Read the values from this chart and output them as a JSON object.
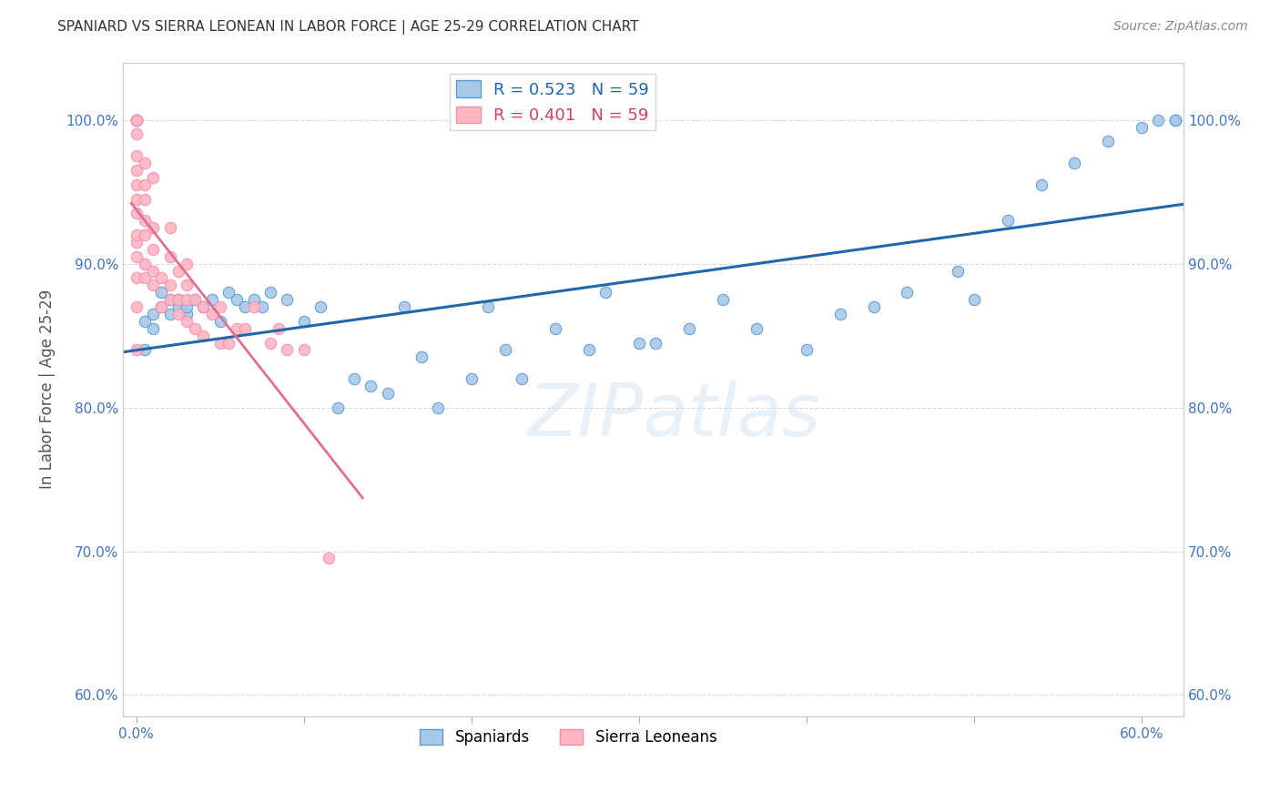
{
  "title": "SPANIARD VS SIERRA LEONEAN IN LABOR FORCE | AGE 25-29 CORRELATION CHART",
  "source": "Source: ZipAtlas.com",
  "xlabel_ticks": [
    0.0,
    0.1,
    0.2,
    0.3,
    0.4,
    0.5,
    0.6
  ],
  "xlabel_labels": [
    "0.0%",
    "",
    "",
    "",
    "",
    "",
    "60.0%"
  ],
  "ylabel_ticks": [
    0.6,
    0.7,
    0.8,
    0.9,
    1.0
  ],
  "ylabel_labels": [
    "60.0%",
    "70.0%",
    "80.0%",
    "90.0%",
    "100.0%"
  ],
  "xlim": [
    -0.008,
    0.625
  ],
  "ylim": [
    0.585,
    1.04
  ],
  "ylabel": "In Labor Force | Age 25-29",
  "legend_blue_label": "R = 0.523   N = 59",
  "legend_pink_label": "R = 0.401   N = 59",
  "blue_color": "#a8c8e8",
  "pink_color": "#ffb6c1",
  "blue_edge_color": "#5b9bd5",
  "pink_edge_color": "#f48fb1",
  "blue_line_color": "#2166ac",
  "pink_line_color": "#e07090",
  "grid_color": "#d0d0d0",
  "title_color": "#333333",
  "tick_color": "#4472c4",
  "watermark": "ZIPatlas",
  "blue_scatter_x": [
    0.005,
    0.005,
    0.01,
    0.01,
    0.015,
    0.015,
    0.02,
    0.02,
    0.025,
    0.025,
    0.03,
    0.03,
    0.035,
    0.04,
    0.045,
    0.05,
    0.055,
    0.06,
    0.065,
    0.07,
    0.075,
    0.08,
    0.09,
    0.1,
    0.11,
    0.12,
    0.13,
    0.14,
    0.15,
    0.16,
    0.17,
    0.18,
    0.2,
    0.21,
    0.22,
    0.23,
    0.25,
    0.27,
    0.28,
    0.3,
    0.31,
    0.33,
    0.35,
    0.37,
    0.4,
    0.42,
    0.44,
    0.46,
    0.49,
    0.5,
    0.52,
    0.54,
    0.56,
    0.58,
    0.6,
    0.61,
    0.62,
    0.62,
    0.63
  ],
  "blue_scatter_y": [
    0.84,
    0.86,
    0.855,
    0.865,
    0.87,
    0.88,
    0.865,
    0.875,
    0.87,
    0.875,
    0.865,
    0.87,
    0.875,
    0.87,
    0.875,
    0.86,
    0.88,
    0.875,
    0.87,
    0.875,
    0.87,
    0.88,
    0.875,
    0.86,
    0.87,
    0.8,
    0.82,
    0.815,
    0.81,
    0.87,
    0.835,
    0.8,
    0.82,
    0.87,
    0.84,
    0.82,
    0.855,
    0.84,
    0.88,
    0.845,
    0.845,
    0.855,
    0.875,
    0.855,
    0.84,
    0.865,
    0.87,
    0.88,
    0.895,
    0.875,
    0.93,
    0.955,
    0.97,
    0.985,
    0.995,
    1.0,
    1.0,
    1.0,
    1.0
  ],
  "pink_scatter_x": [
    0.0,
    0.0,
    0.0,
    0.0,
    0.0,
    0.0,
    0.0,
    0.0,
    0.0,
    0.0,
    0.0,
    0.0,
    0.0,
    0.0,
    0.0,
    0.0,
    0.0,
    0.0,
    0.005,
    0.005,
    0.005,
    0.005,
    0.005,
    0.005,
    0.005,
    0.01,
    0.01,
    0.01,
    0.01,
    0.01,
    0.015,
    0.015,
    0.02,
    0.02,
    0.02,
    0.02,
    0.025,
    0.025,
    0.025,
    0.03,
    0.03,
    0.03,
    0.03,
    0.035,
    0.035,
    0.04,
    0.04,
    0.045,
    0.05,
    0.05,
    0.055,
    0.06,
    0.065,
    0.07,
    0.08,
    0.085,
    0.09,
    0.1,
    0.115
  ],
  "pink_scatter_y": [
    0.84,
    0.87,
    0.89,
    0.905,
    0.915,
    0.92,
    0.935,
    0.945,
    0.955,
    0.965,
    0.975,
    0.99,
    1.0,
    1.0,
    1.0,
    1.0,
    1.0,
    1.0,
    0.89,
    0.9,
    0.92,
    0.93,
    0.945,
    0.955,
    0.97,
    0.885,
    0.895,
    0.91,
    0.925,
    0.96,
    0.87,
    0.89,
    0.875,
    0.885,
    0.905,
    0.925,
    0.865,
    0.875,
    0.895,
    0.86,
    0.875,
    0.885,
    0.9,
    0.855,
    0.875,
    0.85,
    0.87,
    0.865,
    0.845,
    0.87,
    0.845,
    0.855,
    0.855,
    0.87,
    0.845,
    0.855,
    0.84,
    0.84,
    0.695
  ]
}
